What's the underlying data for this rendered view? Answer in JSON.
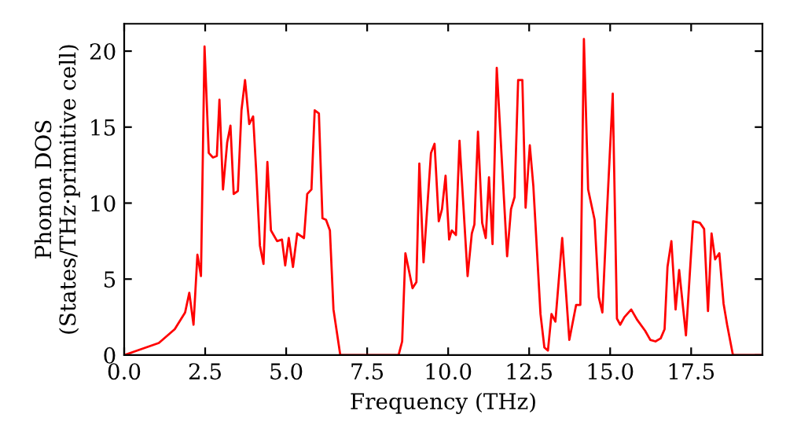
{
  "chart_data": {
    "type": "line",
    "xlabel": "Frequency (THz)",
    "ylabel": "Phonon DOS\n(States/THz·primitive cell)",
    "x": [
      0,
      1.07,
      1.56,
      1.88,
      2.01,
      2.14,
      2.26,
      2.37,
      2.48,
      2.61,
      2.74,
      2.86,
      2.94,
      3.05,
      3.18,
      3.28,
      3.38,
      3.51,
      3.62,
      3.73,
      3.86,
      3.98,
      4.07,
      4.19,
      4.3,
      4.42,
      4.53,
      4.72,
      4.87,
      4.97,
      5.08,
      5.21,
      5.34,
      5.55,
      5.65,
      5.78,
      5.88,
      6.01,
      6.12,
      6.23,
      6.35,
      6.46,
      6.67,
      8.47,
      8.58,
      8.68,
      8.9,
      9.02,
      9.11,
      9.24,
      9.47,
      9.58,
      9.71,
      9.81,
      9.92,
      10.03,
      10.11,
      10.24,
      10.35,
      10.6,
      10.73,
      10.81,
      10.92,
      11.05,
      11.16,
      11.26,
      11.37,
      11.5,
      11.82,
      11.94,
      12.05,
      12.16,
      12.29,
      12.39,
      12.52,
      12.63,
      12.85,
      12.97,
      13.08,
      13.19,
      13.31,
      13.52,
      13.74,
      13.95,
      14.08,
      14.19,
      14.32,
      14.52,
      14.65,
      14.76,
      14.89,
      15.08,
      15.21,
      15.31,
      15.44,
      15.65,
      15.84,
      16.08,
      16.24,
      16.4,
      16.56,
      16.68,
      16.77,
      16.89,
      17.02,
      17.13,
      17.34,
      17.56,
      17.77,
      17.9,
      18.02,
      18.13,
      18.24,
      18.37,
      18.5,
      18.61,
      18.79,
      19.7
    ],
    "series": [
      {
        "color": "#ff0000",
        "values": [
          0,
          0.8,
          1.7,
          2.8,
          4.1,
          2.0,
          6.6,
          5.2,
          20.3,
          13.3,
          13.0,
          13.1,
          16.8,
          10.9,
          14.0,
          15.1,
          10.6,
          10.8,
          16.1,
          18.1,
          15.2,
          15.7,
          12.3,
          7.2,
          6.0,
          12.7,
          8.2,
          7.5,
          7.6,
          5.9,
          7.7,
          5.8,
          8.0,
          7.7,
          10.6,
          10.9,
          16.1,
          15.9,
          9.0,
          8.9,
          8.2,
          3.0,
          0,
          0,
          0.9,
          6.7,
          4.4,
          4.8,
          12.6,
          6.1,
          13.3,
          13.9,
          8.8,
          9.6,
          11.8,
          7.6,
          8.2,
          7.9,
          14.1,
          5.2,
          8.0,
          8.6,
          14.7,
          8.7,
          7.7,
          11.7,
          7.3,
          18.9,
          6.5,
          9.6,
          10.4,
          18.1,
          18.1,
          9.7,
          13.8,
          11.1,
          2.7,
          0.5,
          0.3,
          2.7,
          2.2,
          7.7,
          1.0,
          3.3,
          3.3,
          20.8,
          10.9,
          8.9,
          3.8,
          2.8,
          8.9,
          17.2,
          2.4,
          2.0,
          2.5,
          3.0,
          2.3,
          1.6,
          1.0,
          0.9,
          1.1,
          1.7,
          5.8,
          7.5,
          3.0,
          5.6,
          1.3,
          8.8,
          8.7,
          8.3,
          2.9,
          8.0,
          6.3,
          6.7,
          3.4,
          2.0,
          0,
          0
        ]
      }
    ],
    "xlim": [
      0,
      19.7
    ],
    "ylim": [
      0,
      21.8
    ],
    "xticks": [
      {
        "value": 0,
        "label": "0.0"
      },
      {
        "value": 2.5,
        "label": "2.5"
      },
      {
        "value": 5,
        "label": "5.0"
      },
      {
        "value": 7.5,
        "label": "7.5"
      },
      {
        "value": 10,
        "label": "10.0"
      },
      {
        "value": 12.5,
        "label": "12.5"
      },
      {
        "value": 15,
        "label": "15.0"
      },
      {
        "value": 17.5,
        "label": "17.5"
      }
    ],
    "yticks": [
      0,
      5,
      10,
      15,
      20
    ],
    "grid": false,
    "legend": false,
    "marker": "none",
    "line_style": "solid"
  }
}
